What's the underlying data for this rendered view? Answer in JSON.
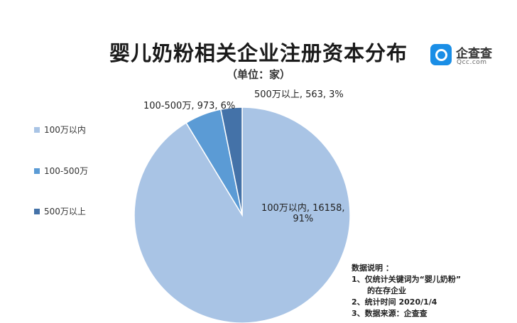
{
  "title": "婴儿奶粉相关企业注册资本分布",
  "subtitle": "（单位：家）",
  "logo": {
    "text": "企查查",
    "sub": "Qcc.com"
  },
  "chart_data": {
    "type": "pie",
    "title": "婴儿奶粉相关企业注册资本分布",
    "unit": "（单位：家）",
    "legend_position": "left",
    "categories": [
      "100万以内",
      "100-500万",
      "500万以上"
    ],
    "values": [
      16158,
      973,
      563
    ],
    "percents": [
      91,
      6,
      3
    ],
    "colors": [
      "#a9c4e5",
      "#5b9bd5",
      "#4472a8"
    ],
    "data_labels": [
      "100万以内, 16158,",
      "100-500万, 973, 6%",
      "500万以上, 563, 3%"
    ],
    "data_labels_line2": [
      "91%",
      "",
      ""
    ]
  },
  "notes": {
    "heading": "数据说明 ：",
    "line1": "1、仅统计关键词为“婴儿奶粉”",
    "line1b": "的在存企业",
    "line2": "2、统计时间  2020/1/4",
    "line3": "3、数据来源：企查查"
  }
}
